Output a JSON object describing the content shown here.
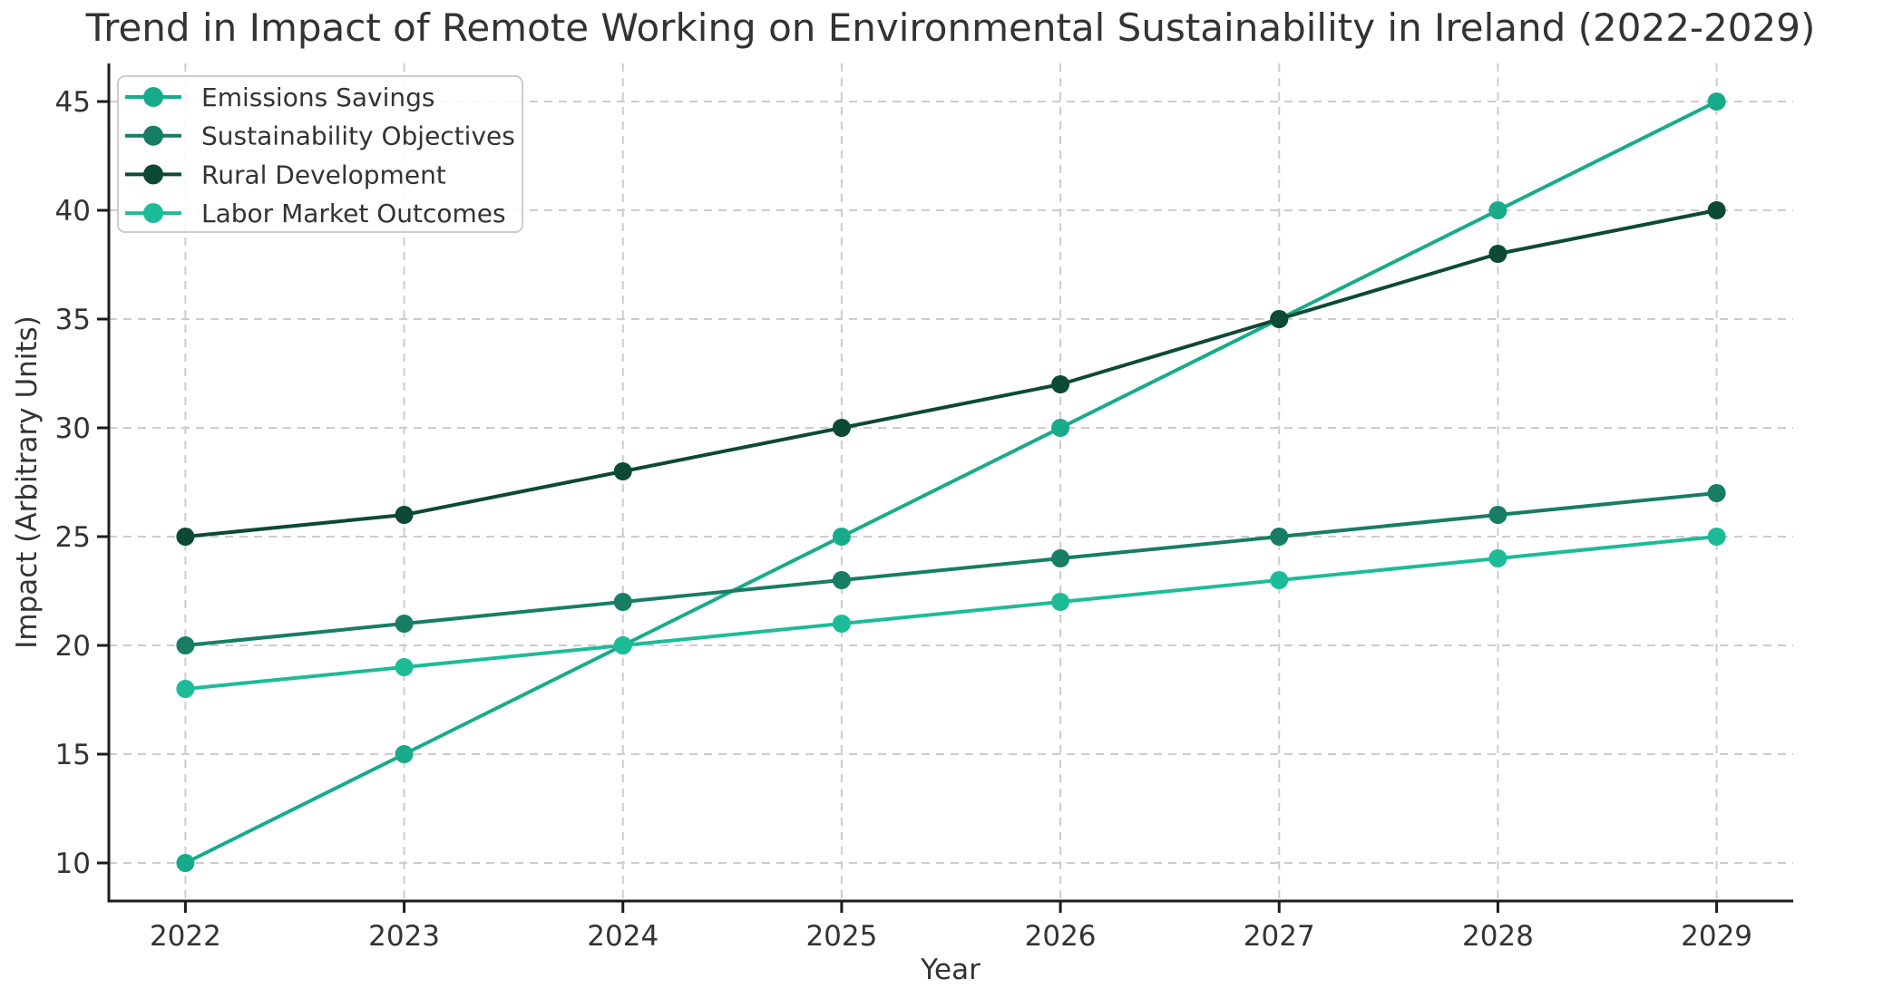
{
  "chart_data": {
    "type": "line",
    "title": "Trend in Impact of Remote Working on Environmental Sustainability in Ireland (2022-2029)",
    "xlabel": "Year",
    "ylabel": "Impact (Arbitrary Units)",
    "x": [
      2022,
      2023,
      2024,
      2025,
      2026,
      2027,
      2028,
      2029
    ],
    "series": [
      {
        "name": "Emissions Savings",
        "color": "#18ab8b",
        "values": [
          10,
          15,
          20,
          25,
          30,
          35,
          40,
          45
        ]
      },
      {
        "name": "Sustainability Objectives",
        "color": "#177d64",
        "values": [
          20,
          21,
          22,
          23,
          24,
          25,
          26,
          27
        ]
      },
      {
        "name": "Rural Development",
        "color": "#0c4a36",
        "values": [
          25,
          26,
          28,
          30,
          32,
          35,
          38,
          40
        ]
      },
      {
        "name": "Labor Market Outcomes",
        "color": "#1cbc98",
        "values": [
          18,
          19,
          20,
          21,
          22,
          23,
          24,
          25
        ]
      }
    ],
    "yticks": [
      10,
      15,
      20,
      25,
      30,
      35,
      40,
      45
    ],
    "xlim": [
      2021.65,
      2029.35
    ],
    "ylim": [
      8.25,
      46.75
    ],
    "grid": true,
    "grid_style": "dashed",
    "legend_position": "upper-left",
    "legend_entries": [
      "Emissions Savings",
      "Sustainability Objectives",
      "Rural Development",
      "Labor Market Outcomes"
    ]
  },
  "style": {
    "background": "#ffffff",
    "text_color": "#333333",
    "axis_color": "#1c1c1c",
    "grid_color": "#cccccc",
    "legend_border": "#cccccc",
    "legend_fill": "rgba(255,255,255,0.85)"
  }
}
